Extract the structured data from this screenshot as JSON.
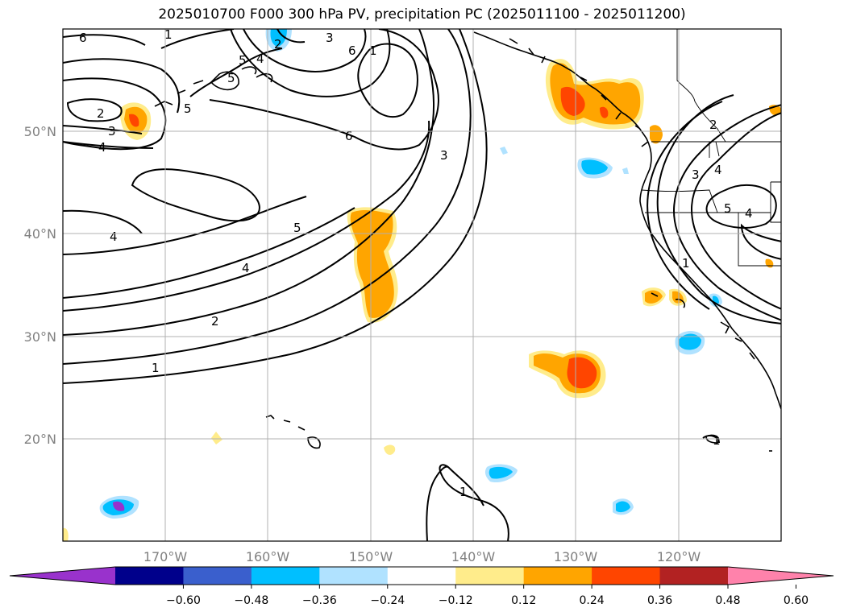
{
  "title": "2025010700 F000 300 hPa PV, precipitation PC (2025011100 - 2025011200)",
  "map": {
    "lon_range": [
      -180,
      -110
    ],
    "lat_range": [
      10,
      60
    ],
    "lat_ticks": [
      "20°N",
      "30°N",
      "40°N",
      "50°N"
    ],
    "lon_ticks": [
      "170°W",
      "160°W",
      "150°W",
      "140°W",
      "130°W",
      "120°W"
    ],
    "gridlines": true
  },
  "pv_contour_labels": [
    "6",
    "5",
    "4",
    "3",
    "2",
    "5",
    "1",
    "6",
    "4",
    "3",
    "2",
    "4",
    "5",
    "6",
    "1",
    "3",
    "5",
    "4",
    "2",
    "1",
    "1",
    "2",
    "3",
    "4",
    "5",
    "4",
    "1",
    "1"
  ],
  "colorbar": {
    "ticks": [
      "−0.60",
      "−0.48",
      "−0.36",
      "−0.24",
      "−0.12",
      "0.12",
      "0.24",
      "0.36",
      "0.48",
      "0.60"
    ],
    "colors": [
      "#9932CC",
      "#00008B",
      "#3A5FCD",
      "#00BFFF",
      "#B0E2FF",
      "#FFFFFF",
      "#FFEC8B",
      "#FFA500",
      "#FF4500",
      "#B22222",
      "#FF82AB"
    ],
    "extend": "both"
  }
}
